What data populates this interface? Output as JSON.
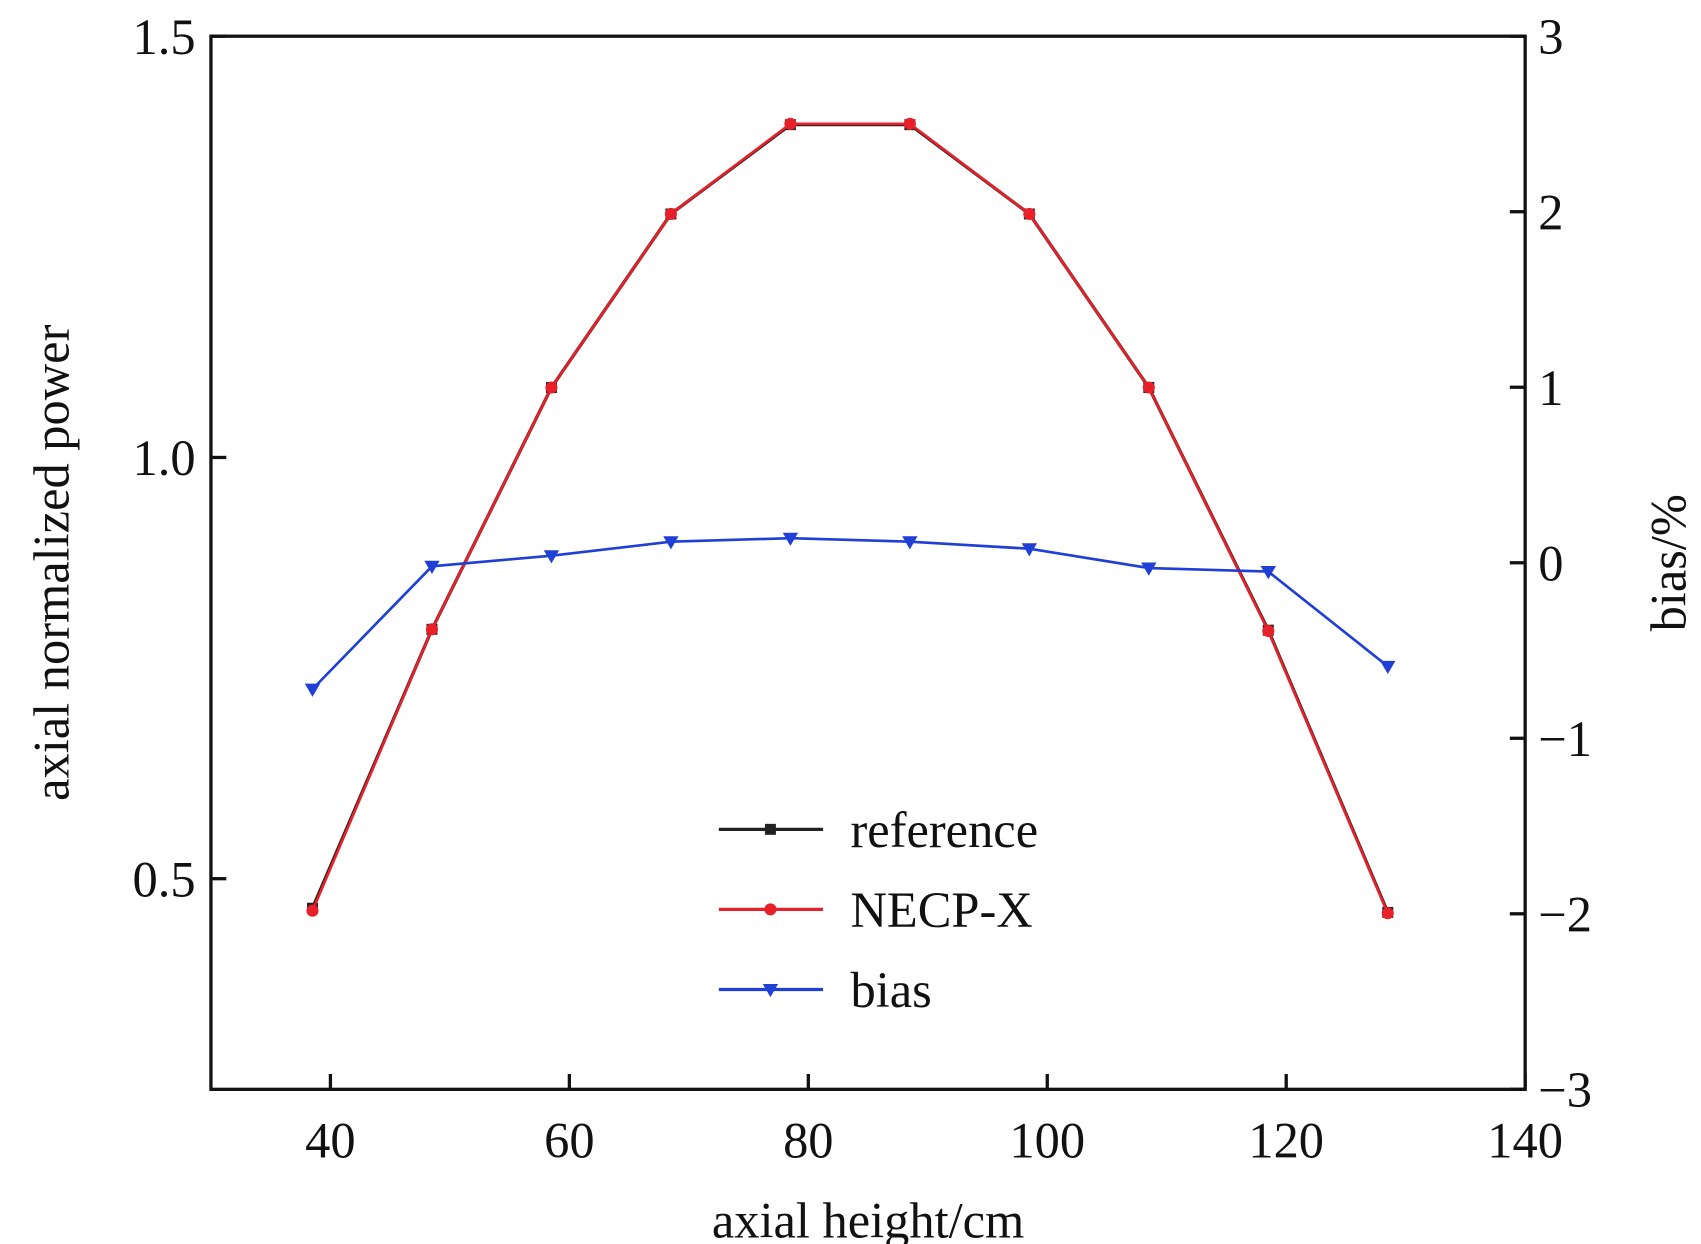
{
  "chart_data": {
    "type": "line",
    "title": "",
    "xlabel": "axial height/cm",
    "ylabel": "axial normalized power",
    "y2label": "bias/%",
    "xlim": [
      30,
      140
    ],
    "ylim": [
      0.25,
      1.5
    ],
    "y2lim": [
      -3,
      3
    ],
    "xticks": [
      "40",
      "60",
      "80",
      "100",
      "120",
      "140"
    ],
    "yticks": [
      "0.5",
      "1.0",
      "1.5"
    ],
    "y2ticks": [
      "−3",
      "−2",
      "−1",
      "0",
      "1",
      "2",
      "3"
    ],
    "grid": false,
    "legend_position": "bottom-center",
    "x": [
      38.5,
      48.5,
      58.5,
      68.5,
      78.5,
      88.5,
      98.5,
      108.5,
      118.5,
      128.5
    ],
    "series": [
      {
        "name": "reference",
        "axis": "left",
        "color": "#222222",
        "marker": "square",
        "values": [
          0.465,
          0.796,
          1.083,
          1.289,
          1.395,
          1.395,
          1.289,
          1.083,
          0.795,
          0.46
        ]
      },
      {
        "name": "NECP-X",
        "axis": "left",
        "color": "#e8202a",
        "marker": "circle",
        "values": [
          0.462,
          0.796,
          1.083,
          1.289,
          1.396,
          1.396,
          1.289,
          1.083,
          0.794,
          0.459
        ]
      },
      {
        "name": "bias",
        "axis": "right",
        "color": "#1f3fd6",
        "marker": "triangle-down",
        "values": [
          -0.72,
          -0.02,
          0.04,
          0.12,
          0.14,
          0.12,
          0.08,
          -0.03,
          -0.05,
          -0.59
        ]
      }
    ]
  }
}
